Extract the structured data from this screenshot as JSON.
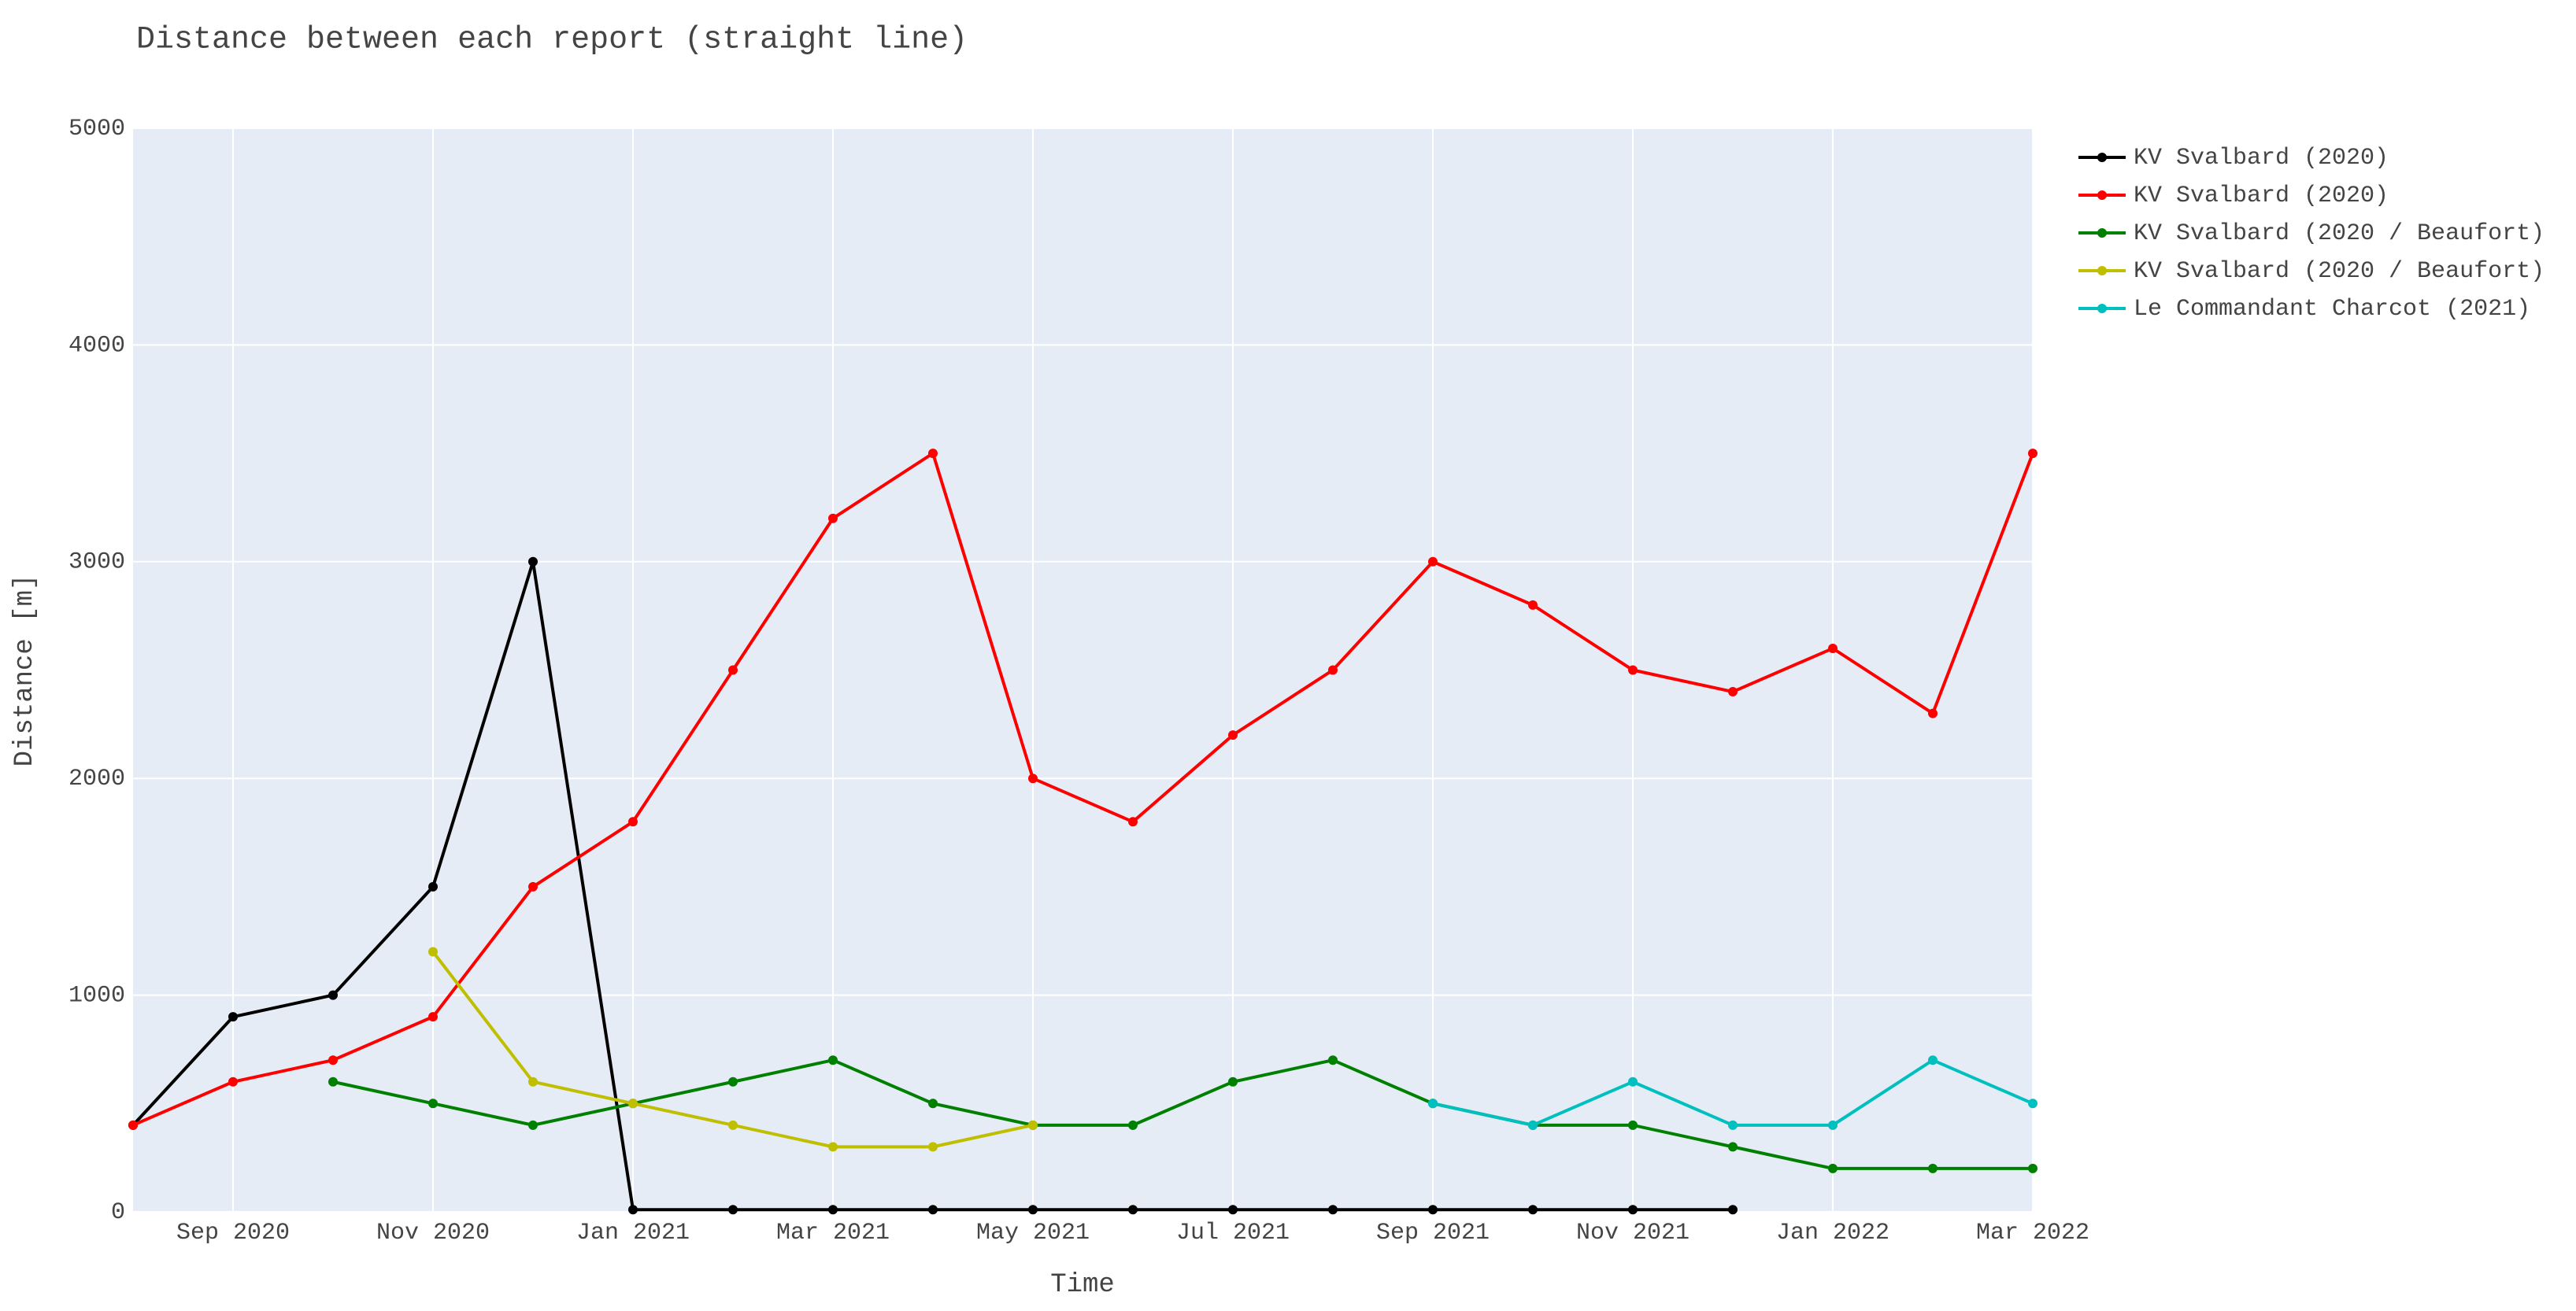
{
  "chart_data": {
    "type": "line",
    "title": "Distance between each report (straight line)",
    "x_label": "Time",
    "y_label": "Distance [m]",
    "x": [
      "2020-08",
      "2020-09",
      "2020-10",
      "2020-11",
      "2020-12",
      "2021-01",
      "2021-02",
      "2021-03",
      "2021-04",
      "2021-05",
      "2021-06",
      "2021-07",
      "2021-08",
      "2021-09",
      "2021-10",
      "2021-11",
      "2021-12",
      "2022-01",
      "2022-02",
      "2022-03"
    ],
    "xlim": [
      "2020-08",
      "2022-03"
    ],
    "xticks": [
      {
        "value": "2020-09",
        "label": "Sep 2020"
      },
      {
        "value": "2020-11",
        "label": "Nov 2020"
      },
      {
        "value": "2021-01",
        "label": "Jan 2021"
      },
      {
        "value": "2021-03",
        "label": "Mar 2021"
      },
      {
        "value": "2021-05",
        "label": "May 2021"
      },
      {
        "value": "2021-07",
        "label": "Jul 2021"
      },
      {
        "value": "2021-09",
        "label": "Sep 2021"
      },
      {
        "value": "2021-11",
        "label": "Nov 2021"
      },
      {
        "value": "2022-01",
        "label": "Jan 2022"
      },
      {
        "value": "2022-03",
        "label": "Mar 2022"
      }
    ],
    "ylim": [
      0,
      5000
    ],
    "yticks": [
      0,
      1000,
      2000,
      3000,
      4000,
      5000
    ],
    "grid": true,
    "series": [
      {
        "name": "KV Svalbard (2020)",
        "color": "#000000",
        "values": [
          400,
          900,
          1000,
          1500,
          3000,
          10,
          10,
          10,
          10,
          10,
          10,
          10,
          10,
          10,
          10,
          10,
          10,
          null,
          null,
          null
        ]
      },
      {
        "name": "KV Svalbard (2020)",
        "color": "#ff0000",
        "values": [
          400,
          600,
          700,
          900,
          1500,
          1800,
          2500,
          3200,
          3500,
          2000,
          1800,
          2200,
          2500,
          3000,
          2800,
          2500,
          2400,
          2600,
          2300,
          3500
        ]
      },
      {
        "name": "KV Svalbard (2020 / Beaufort)",
        "color": "#008000",
        "values": [
          null,
          null,
          600,
          500,
          400,
          500,
          600,
          700,
          500,
          400,
          400,
          600,
          700,
          500,
          400,
          400,
          300,
          200,
          200,
          200
        ]
      },
      {
        "name": "KV Svalbard (2020 / Beaufort)",
        "color": "#bfbf00",
        "values": [
          null,
          null,
          null,
          1200,
          600,
          500,
          400,
          300,
          300,
          400,
          null,
          null,
          null,
          null,
          null,
          null,
          null,
          null,
          null,
          null
        ]
      },
      {
        "name": "Le Commandant Charcot (2021)",
        "color": "#00bfbf",
        "values": [
          null,
          null,
          null,
          null,
          null,
          null,
          null,
          null,
          null,
          null,
          null,
          null,
          null,
          500,
          400,
          600,
          400,
          400,
          700,
          500
        ]
      }
    ]
  }
}
